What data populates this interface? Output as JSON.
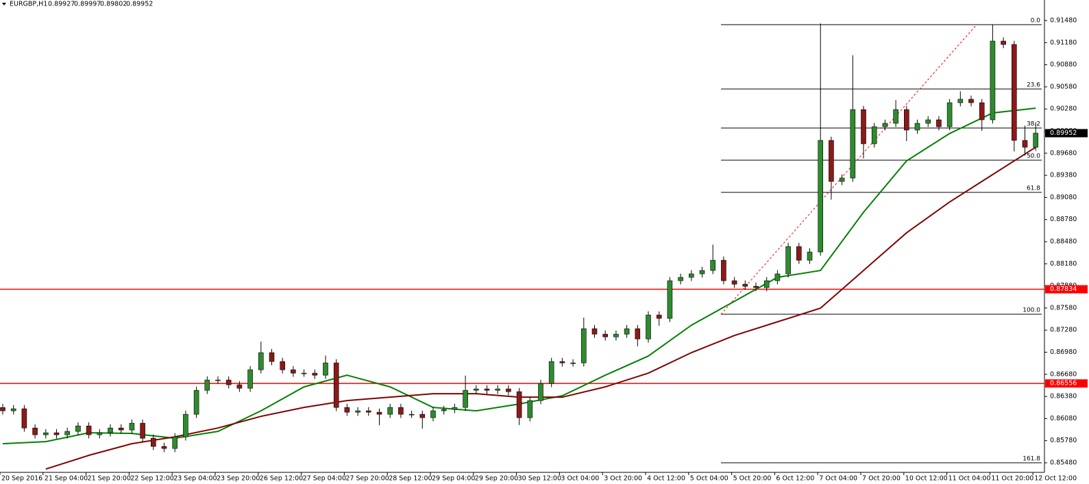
{
  "chart_data": {
    "type": "candlestick",
    "symbol": "EURGBP,H1",
    "ohlc": [
      0.89927,
      0.89997,
      0.89802,
      0.89952
    ],
    "x_labels": [
      "20 Sep 2016",
      "21 Sep 04:00",
      "21 Sep 20:00",
      "22 Sep 12:00",
      "23 Sep 04:00",
      "23 Sep 20:00",
      "26 Sep 12:00",
      "27 Sep 04:00",
      "27 Sep 20:00",
      "28 Sep 12:00",
      "29 Sep 04:00",
      "29 Sep 20:00",
      "30 Sep 12:00",
      "3 Oct 04:00",
      "3 Oct 20:00",
      "4 Oct 12:00",
      "5 Oct 04:00",
      "5 Oct 20:00",
      "6 Oct 12:00",
      "7 Oct 04:00",
      "7 Oct 20:00",
      "10 Oct 12:00",
      "11 Oct 04:00",
      "11 Oct 20:00",
      "12 Oct 12:00"
    ],
    "open": [
      0.8623,
      0.86185,
      0.86213,
      0.85952,
      0.8586,
      0.85887,
      0.8586,
      0.85906,
      0.8598,
      0.8586,
      0.85887,
      0.85952,
      0.85925,
      0.86017,
      0.85813,
      0.85702,
      0.85674,
      0.85832,
      0.86138,
      0.86463,
      0.86603,
      0.86603,
      0.86538,
      0.86491,
      0.86742,
      0.86974,
      0.86854,
      0.86742,
      0.86696,
      0.86696,
      0.86668,
      0.86835,
      0.86231,
      0.86166,
      0.86185,
      0.86166,
      0.86138,
      0.86231,
      0.86138,
      0.86138,
      0.86092,
      0.86185,
      0.86203,
      0.86231,
      0.86463,
      0.86482,
      0.86463,
      0.86482,
      0.86445,
      0.86092,
      0.86324,
      0.86556,
      0.86854,
      0.86835,
      0.86835,
      0.87299,
      0.87225,
      0.87188,
      0.87225,
      0.87299,
      0.8716,
      0.87485,
      0.87439,
      0.8795,
      0.87996,
      0.88043,
      0.88089,
      0.88228,
      0.8795,
      0.87903,
      0.87875,
      0.87857,
      0.8795,
      0.88043,
      0.88414,
      0.88228,
      0.8834,
      0.89854,
      0.89297,
      0.89343,
      0.90272,
      0.89808,
      0.9004,
      0.90086,
      0.90272,
      0.89994,
      0.90086,
      0.90133,
      0.9004,
      0.90365,
      0.90412,
      0.90365,
      0.90133,
      0.91201,
      0.91155,
      0.89854,
      0.89761
    ],
    "high": [
      0.8628,
      0.86263,
      0.86263,
      0.86002,
      0.85937,
      0.85937,
      0.85956,
      0.8603,
      0.8603,
      0.85937,
      0.86002,
      0.86002,
      0.86067,
      0.86067,
      0.85863,
      0.85752,
      0.85882,
      0.86188,
      0.86513,
      0.86653,
      0.86653,
      0.86653,
      0.86588,
      0.86792,
      0.87124,
      0.87024,
      0.86904,
      0.86792,
      0.86746,
      0.86746,
      0.86935,
      0.86885,
      0.86281,
      0.86235,
      0.86235,
      0.86216,
      0.86281,
      0.86281,
      0.86188,
      0.86188,
      0.86235,
      0.86253,
      0.86281,
      0.86663,
      0.86532,
      0.86532,
      0.86532,
      0.86532,
      0.86495,
      0.86374,
      0.86606,
      0.86904,
      0.86904,
      0.86885,
      0.87449,
      0.87349,
      0.87275,
      0.87275,
      0.87349,
      0.87349,
      0.87535,
      0.87535,
      0.88,
      0.88046,
      0.88093,
      0.88139,
      0.8844,
      0.88278,
      0.88,
      0.87953,
      0.87925,
      0.88,
      0.88093,
      0.88464,
      0.88464,
      0.8839,
      0.9144,
      0.89904,
      0.89393,
      0.9101,
      0.90322,
      0.9009,
      0.90136,
      0.904,
      0.90322,
      0.90136,
      0.90183,
      0.90183,
      0.90415,
      0.9052,
      0.90462,
      0.90415,
      0.9142,
      0.91251,
      0.91205,
      0.90054,
      0.901
    ],
    "low": [
      0.86135,
      0.86135,
      0.85902,
      0.8581,
      0.8581,
      0.8581,
      0.8581,
      0.85856,
      0.8581,
      0.8581,
      0.85837,
      0.85875,
      0.85875,
      0.85763,
      0.85652,
      0.85624,
      0.85624,
      0.85782,
      0.86088,
      0.86413,
      0.86553,
      0.86488,
      0.86441,
      0.86441,
      0.86692,
      0.86804,
      0.86692,
      0.86646,
      0.86646,
      0.86618,
      0.86618,
      0.86181,
      0.86116,
      0.86116,
      0.86116,
      0.85988,
      0.86088,
      0.86088,
      0.86088,
      0.85942,
      0.86042,
      0.86135,
      0.86153,
      0.86181,
      0.86413,
      0.86413,
      0.86413,
      0.86395,
      0.85992,
      0.86042,
      0.86274,
      0.86506,
      0.86785,
      0.86785,
      0.86785,
      0.87175,
      0.87138,
      0.87138,
      0.87175,
      0.8706,
      0.8711,
      0.87339,
      0.87389,
      0.879,
      0.87946,
      0.87993,
      0.88039,
      0.879,
      0.87853,
      0.87825,
      0.87807,
      0.87807,
      0.879,
      0.87993,
      0.88178,
      0.88178,
      0.8829,
      0.8905,
      0.89247,
      0.89293,
      0.89608,
      0.89758,
      0.8999,
      0.90036,
      0.89844,
      0.89944,
      0.90036,
      0.8999,
      0.8999,
      0.90315,
      0.90315,
      0.89983,
      0.90083,
      0.91105,
      0.89704,
      0.8965,
      0.89711
    ],
    "close": [
      0.86185,
      0.86213,
      0.85952,
      0.8586,
      0.85887,
      0.8586,
      0.85906,
      0.8598,
      0.8586,
      0.85887,
      0.85952,
      0.85925,
      0.86017,
      0.85813,
      0.85702,
      0.85674,
      0.85832,
      0.86138,
      0.86463,
      0.86603,
      0.86603,
      0.86538,
      0.86491,
      0.86742,
      0.86974,
      0.86854,
      0.86742,
      0.86696,
      0.86696,
      0.86668,
      0.86835,
      0.86231,
      0.86166,
      0.86185,
      0.86166,
      0.86138,
      0.86231,
      0.86138,
      0.86138,
      0.86092,
      0.86185,
      0.86203,
      0.86231,
      0.86463,
      0.86482,
      0.86463,
      0.86482,
      0.86445,
      0.86092,
      0.86324,
      0.86556,
      0.86854,
      0.86835,
      0.86835,
      0.87299,
      0.87225,
      0.87188,
      0.87225,
      0.87299,
      0.8716,
      0.87485,
      0.87439,
      0.8795,
      0.87996,
      0.88043,
      0.88089,
      0.88228,
      0.8795,
      0.87903,
      0.87875,
      0.87857,
      0.8795,
      0.88043,
      0.88414,
      0.88228,
      0.8834,
      0.89854,
      0.89297,
      0.89343,
      0.90272,
      0.89808,
      0.9004,
      0.90086,
      0.90272,
      0.89994,
      0.90086,
      0.90133,
      0.9004,
      0.90365,
      0.90412,
      0.90365,
      0.90133,
      0.91201,
      0.91155,
      0.89854,
      0.89761,
      0.89952
    ],
    "up_color": "#2e8b2e",
    "down_color": "#8b1a1a",
    "wick_color": "#000000",
    "moving_averages": [
      {
        "color": "#008000",
        "values": [
          0.85739,
          0.85767,
          0.85887,
          0.85878,
          0.85813,
          0.85906,
          0.86185,
          0.8651,
          0.86668,
          0.8651,
          0.86231,
          0.86185,
          0.86278,
          0.86389,
          0.86668,
          0.86928,
          0.87346,
          0.87671,
          0.87996,
          0.88089,
          0.88879,
          0.89576,
          0.89947,
          0.90226,
          0.90291
        ]
      },
      {
        "color": "#800000",
        "values": [
          null,
          0.85395,
          0.85581,
          0.85739,
          0.85832,
          0.85952,
          0.8611,
          0.86231,
          0.86324,
          0.8637,
          0.86417,
          0.86417,
          0.8637,
          0.8637,
          0.8651,
          0.86696,
          0.86974,
          0.87207,
          0.87392,
          0.87578,
          0.88089,
          0.886,
          0.89018,
          0.8939,
          0.89761
        ]
      }
    ],
    "price_lines": [
      {
        "value": 0.87834,
        "label": "0.87834",
        "color": "#ff0000"
      },
      {
        "value": 0.86556,
        "label": "0.86556",
        "color": "#ff0000"
      }
    ],
    "current_price": {
      "value": 0.89952,
      "label": "0.89952"
    },
    "fibonacci": [
      {
        "label": "0.0",
        "value": 0.91424
      },
      {
        "label": "23.6",
        "value": 0.90551
      },
      {
        "label": "38.2",
        "value": 0.90022
      },
      {
        "label": "50.0",
        "value": 0.89585
      },
      {
        "label": "61.8",
        "value": 0.89149
      },
      {
        "label": "100.0",
        "value": 0.87495
      },
      {
        "label": "161.8",
        "value": 0.8548
      }
    ],
    "ylim": [
      0.8535,
      0.91647
    ],
    "yticks": [
      {
        "value": 0.9148,
        "label": "0.91480"
      },
      {
        "value": 0.9118,
        "label": "0.91180"
      },
      {
        "value": 0.9088,
        "label": "0.90880"
      },
      {
        "value": 0.9058,
        "label": "0.90580"
      },
      {
        "value": 0.9028,
        "label": "0.90280"
      },
      {
        "value": 0.8998,
        "label": "0.89980"
      },
      {
        "value": 0.8968,
        "label": "0.89680"
      },
      {
        "value": 0.8938,
        "label": "0.89380"
      },
      {
        "value": 0.8908,
        "label": "0.89080"
      },
      {
        "value": 0.8878,
        "label": "0.88780"
      },
      {
        "value": 0.8848,
        "label": "0.88480"
      },
      {
        "value": 0.8818,
        "label": "0.88180"
      },
      {
        "value": 0.8788,
        "label": "0.87880"
      },
      {
        "value": 0.8758,
        "label": "0.87580"
      },
      {
        "value": 0.8728,
        "label": "0.87280"
      },
      {
        "value": 0.8698,
        "label": "0.86980"
      },
      {
        "value": 0.8668,
        "label": "0.86680"
      },
      {
        "value": 0.8638,
        "label": "0.86380"
      },
      {
        "value": 0.8608,
        "label": "0.86080"
      },
      {
        "value": 0.8578,
        "label": "0.85780"
      },
      {
        "value": 0.8548,
        "label": "0.85480"
      }
    ]
  }
}
